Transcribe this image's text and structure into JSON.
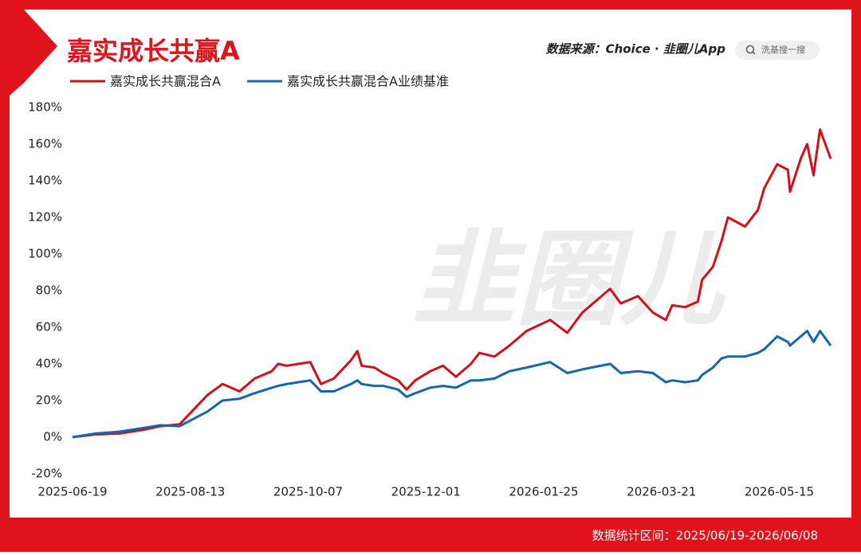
{
  "chart_data": {
    "type": "line",
    "title": "嘉实成长共赢A",
    "source": "数据来源：Choice · 韭圈儿App",
    "search_placeholder": "洗基搜一搜",
    "watermark": "韭圈儿",
    "footer": "数据统计区间：2025/06/19-2026/06/08",
    "x": [
      "2025-06-19",
      "2025-06-30",
      "2025-07-11",
      "2025-07-22",
      "2025-07-30",
      "2025-08-08",
      "2025-08-21",
      "2025-08-28",
      "2025-09-05",
      "2025-09-12",
      "2025-09-20",
      "2025-09-23",
      "2025-09-27",
      "2025-10-08",
      "2025-10-13",
      "2025-10-19",
      "2025-10-27",
      "2025-10-30",
      "2025-11-01",
      "2025-11-07",
      "2025-11-11",
      "2025-11-18",
      "2025-11-22",
      "2025-11-26",
      "2025-12-03",
      "2025-12-09",
      "2025-12-15",
      "2025-12-22",
      "2025-12-26",
      "2026-01-02",
      "2026-01-09",
      "2026-01-17",
      "2026-01-28",
      "2026-02-05",
      "2026-02-12",
      "2026-02-25",
      "2026-03-02",
      "2026-03-10",
      "2026-03-17",
      "2026-03-23",
      "2026-03-26",
      "2026-04-01",
      "2026-04-07",
      "2026-04-09",
      "2026-04-14",
      "2026-04-18",
      "2026-04-21",
      "2026-04-29",
      "2026-05-05",
      "2026-05-08",
      "2026-05-14",
      "2026-05-19",
      "2026-05-20",
      "2026-05-25",
      "2026-05-28",
      "2026-05-31",
      "2026-06-03",
      "2026-06-08"
    ],
    "series": [
      {
        "name": "嘉实成长共赢混合A",
        "color": "#d0111b",
        "values": [
          0,
          1.5,
          2,
          4,
          6,
          7,
          23,
          29,
          25,
          32,
          36,
          40,
          39,
          41,
          29,
          32,
          42,
          47,
          39,
          38,
          35,
          31,
          26,
          31,
          36,
          39,
          33,
          40,
          46,
          44,
          50,
          58,
          64,
          57,
          68,
          81,
          73,
          77,
          68,
          64,
          72,
          71,
          74,
          86,
          93,
          107,
          120,
          115,
          124,
          136,
          149,
          146,
          134,
          152,
          160,
          143,
          168,
          152
        ]
      },
      {
        "name": "嘉实成长共赢混合A业绩基准",
        "color": "#1565b0",
        "values": [
          0,
          2,
          3,
          5,
          6.5,
          6,
          14,
          20,
          21,
          24,
          27,
          28,
          29,
          31,
          25,
          25,
          29,
          31,
          29,
          28,
          28,
          26,
          22,
          24,
          27,
          28,
          27,
          31,
          31,
          32,
          36,
          38,
          41,
          35,
          37,
          40,
          35,
          36,
          35,
          30,
          31,
          30,
          31,
          34,
          38,
          43,
          44,
          44,
          46,
          48,
          55,
          52,
          50,
          55,
          58,
          52,
          58,
          50
        ]
      }
    ],
    "xlim": [
      "2025-06-19",
      "2026-06-08"
    ],
    "xticks": [
      "2025-06-19",
      "2025-08-13",
      "2025-10-07",
      "2025-12-01",
      "2026-01-25",
      "2026-03-21",
      "2026-05-15"
    ],
    "ylim": [
      -20,
      180
    ],
    "yticks": [
      {
        "value": -20,
        "label": "-20%"
      },
      {
        "value": 0,
        "label": "0%"
      },
      {
        "value": 20,
        "label": "20%"
      },
      {
        "value": 40,
        "label": "40%"
      },
      {
        "value": 60,
        "label": "60%"
      },
      {
        "value": 80,
        "label": "80%"
      },
      {
        "value": 100,
        "label": "100%"
      },
      {
        "value": 120,
        "label": "120%"
      },
      {
        "value": 140,
        "label": "140%"
      },
      {
        "value": 160,
        "label": "160%"
      },
      {
        "value": 180,
        "label": "180%"
      }
    ],
    "grid": false
  }
}
